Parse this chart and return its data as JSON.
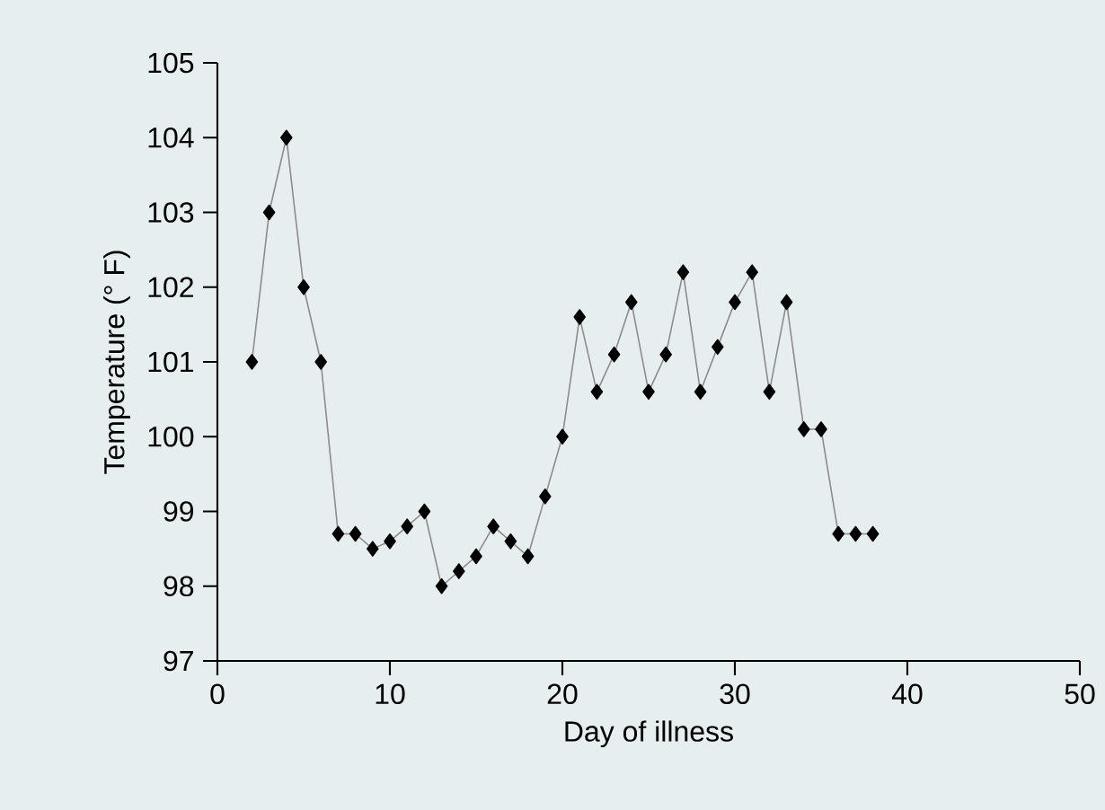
{
  "chart_data": {
    "type": "line",
    "xlabel": "Day of illness",
    "ylabel": "Temperature (° F)",
    "x": [
      2,
      3,
      4,
      5,
      6,
      7,
      8,
      9,
      10,
      11,
      12,
      13,
      14,
      15,
      16,
      17,
      18,
      19,
      20,
      21,
      22,
      23,
      24,
      25,
      26,
      27,
      28,
      29,
      30,
      31,
      32,
      33,
      34,
      35,
      36,
      37,
      38
    ],
    "values": [
      101,
      103,
      104,
      102,
      101,
      98.7,
      98.7,
      98.5,
      98.6,
      98.8,
      99,
      98,
      98.2,
      98.4,
      98.8,
      98.6,
      98.4,
      99.2,
      100,
      101.6,
      100.6,
      101.1,
      101.8,
      100.6,
      101.1,
      102.2,
      100.6,
      101.2,
      101.8,
      102.2,
      100.6,
      101.8,
      100.1,
      100.1,
      98.7,
      98.7,
      98.7
    ],
    "color": "#000000",
    "marker": "diamond",
    "line_style": "solid",
    "xlim": [
      0,
      50
    ],
    "ylim": [
      97,
      105
    ],
    "xticks": [
      0,
      10,
      20,
      30,
      40,
      50
    ],
    "yticks": [
      97,
      98,
      99,
      100,
      101,
      102,
      103,
      104,
      105
    ]
  }
}
